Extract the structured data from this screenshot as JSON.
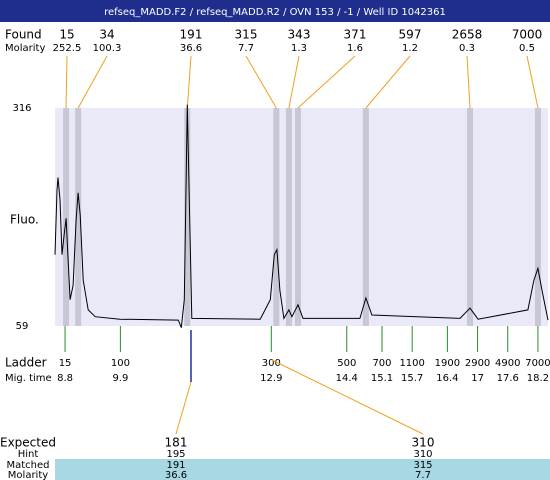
{
  "header": {
    "title": "refseq_MADD.F2 / refseq_MADD.R2 / OVN 153 / -1 / Well ID 1042361"
  },
  "found": {
    "label": "Found",
    "molarity_label": "Molarity",
    "sizes": [
      15,
      34,
      191,
      315,
      343,
      371,
      597,
      2658,
      7000
    ],
    "molarity": [
      252.5,
      100.3,
      36.6,
      7.7,
      1.3,
      1.6,
      1.2,
      0.3,
      0.5
    ],
    "mig_time": [
      8.82,
      9.06,
      11.23,
      13.0,
      13.25,
      13.43,
      14.78,
      16.85,
      18.2
    ]
  },
  "trace": {
    "label": "Fluo.",
    "ylim": [
      59,
      316
    ],
    "yticks": [
      59,
      316
    ],
    "xlim": [
      8.6,
      18.4
    ],
    "x": [
      8.6,
      8.64,
      8.66,
      8.7,
      8.74,
      8.78,
      8.82,
      8.86,
      8.9,
      8.96,
      9.02,
      9.06,
      9.1,
      9.16,
      9.26,
      9.4,
      9.89,
      11.05,
      11.11,
      11.17,
      11.23,
      11.27,
      11.32,
      12.68,
      12.88,
      12.96,
      13.01,
      13.07,
      13.15,
      13.25,
      13.31,
      13.43,
      13.53,
      14.66,
      14.78,
      14.9,
      16.65,
      16.85,
      17.01,
      18.0,
      18.12,
      18.2,
      18.28,
      18.4
    ],
    "values": [
      143,
      219,
      234,
      208,
      143,
      166,
      186,
      137,
      90,
      107,
      184,
      216,
      190,
      113,
      78,
      70,
      67,
      66,
      57,
      90,
      320,
      208,
      68,
      67,
      90,
      143,
      149,
      101,
      68,
      78,
      70,
      84,
      68,
      68,
      92,
      72,
      68,
      80,
      67,
      78,
      113,
      127,
      101,
      66
    ]
  },
  "ladder": {
    "label": "Ladder",
    "mig_label": "Mig. time",
    "sizes": [
      15,
      100,
      300,
      500,
      700,
      1100,
      1900,
      2900,
      4900,
      7000
    ],
    "mig_times": [
      8.8,
      9.9,
      12.9,
      14.4,
      15.1,
      15.7,
      16.4,
      17,
      17.6,
      18.2
    ]
  },
  "expected": {
    "labels": [
      "Expected",
      "Hint",
      "Matched",
      "Molarity"
    ],
    "rows": [
      [
        181,
        310
      ],
      [
        195,
        310
      ],
      [
        191,
        315
      ],
      [
        36.6,
        7.7
      ]
    ]
  }
}
